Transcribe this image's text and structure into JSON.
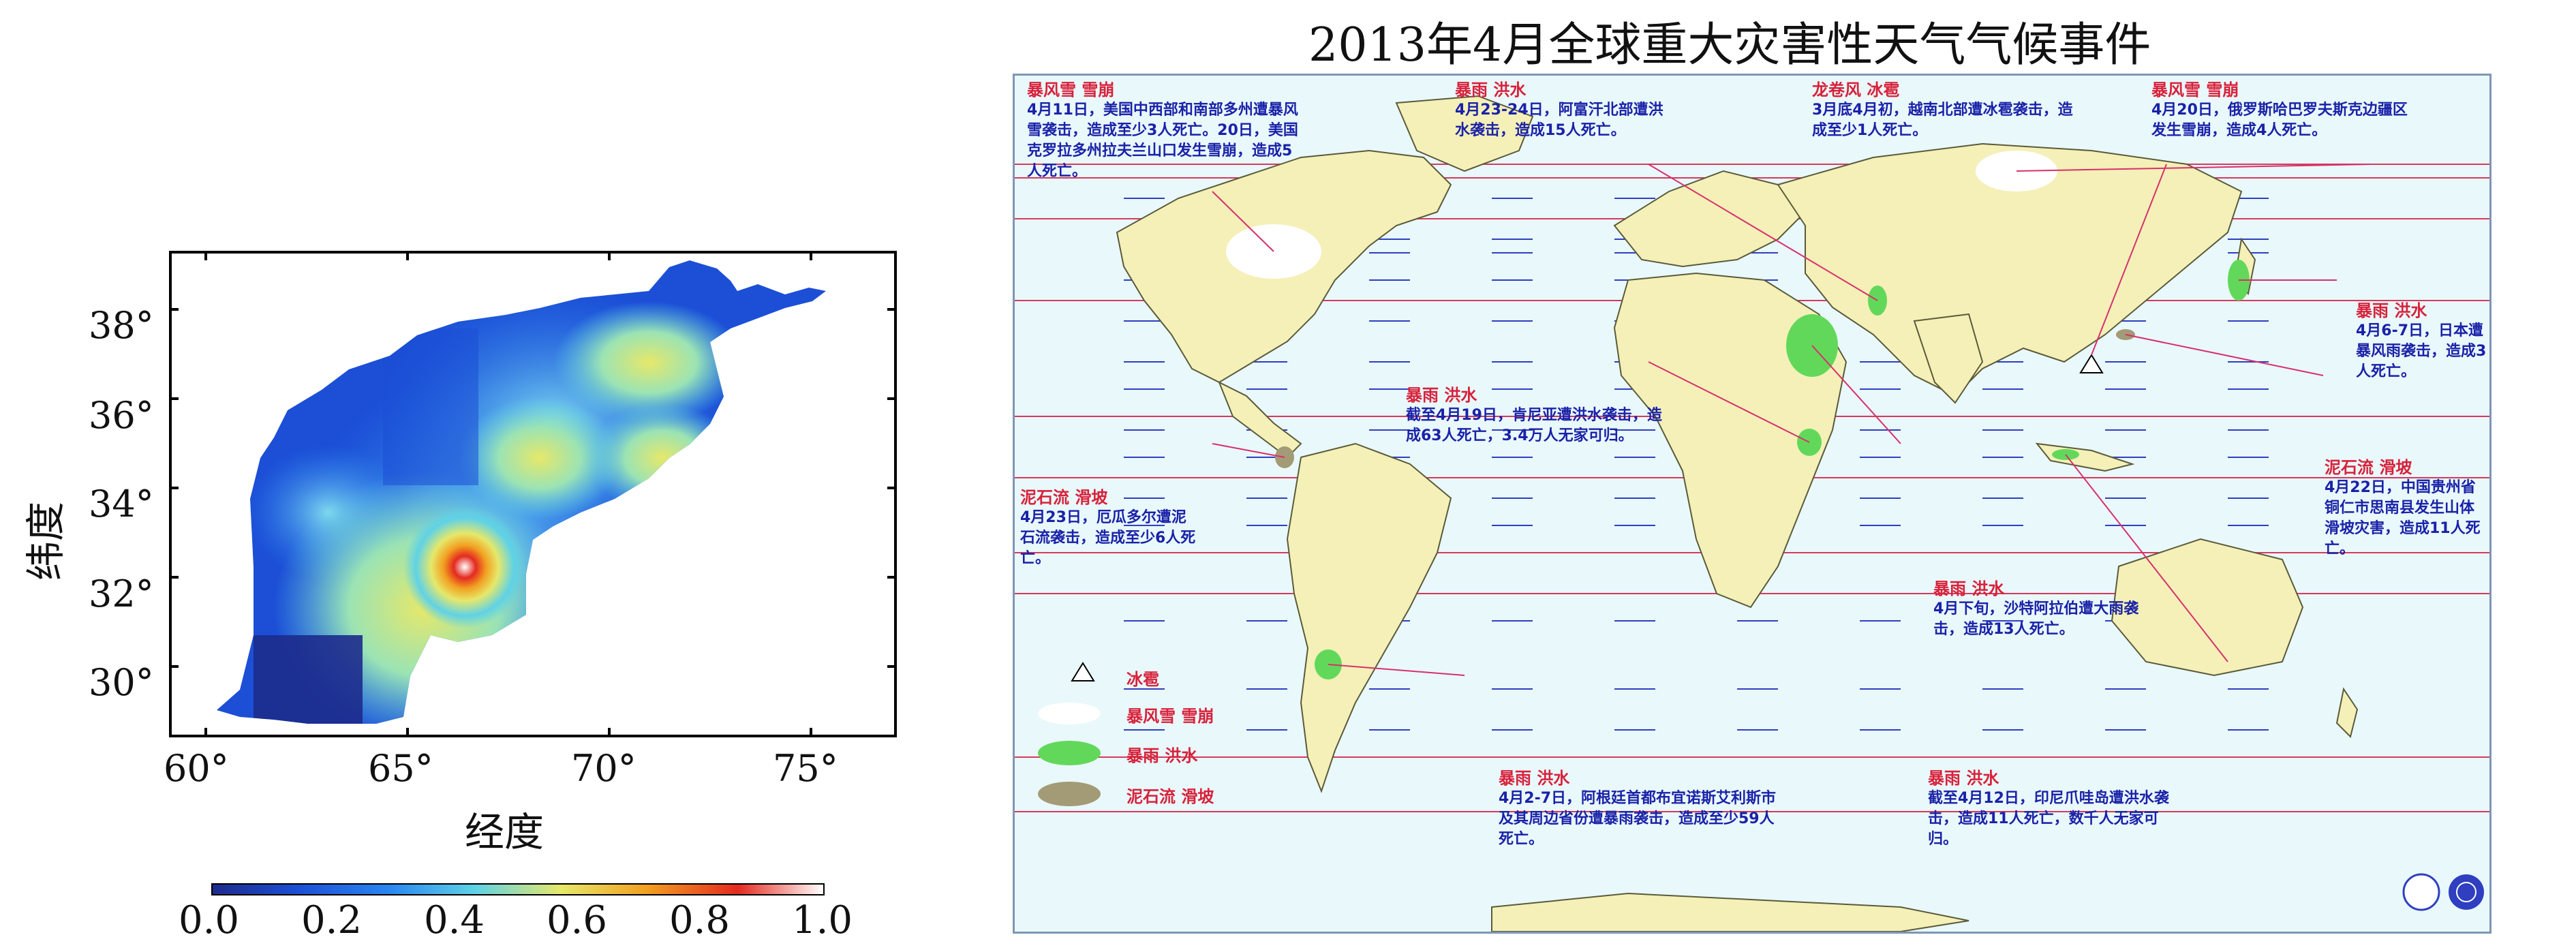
{
  "left_map": {
    "lat_labels": [
      "38°",
      "36°",
      "34°",
      "32°",
      "30°"
    ],
    "lon_labels": [
      "60°",
      "65°",
      "70°",
      "75°"
    ],
    "ylabel": "纬度",
    "xlabel": "经度",
    "colorbar": {
      "tick_labels": [
        "0.0",
        "0.2",
        "0.4",
        "0.6",
        "0.8",
        "1.0"
      ],
      "colors": [
        "#1d2b8c",
        "#1c4fd6",
        "#2a86f0",
        "#5fd2e6",
        "#e6e86a",
        "#f2a021",
        "#e42a20",
        "#ffffff"
      ]
    }
  },
  "world_map": {
    "title": "2013年4月全球重大灾害性天气气候事件",
    "events": [
      {
        "title": "暴风雪 雪崩",
        "text": "4月11日，美国中西部和南部多州遭暴风雪袭击，造成至少3人死亡。20日，美国克罗拉多州拉夫兰山口发生雪崩，造成5人死亡。"
      },
      {
        "title": "暴雨 洪水",
        "text": "4月23-24日，阿富汗北部遭洪水袭击，造成15人死亡。"
      },
      {
        "title": "龙卷风 冰雹",
        "text": "3月底4月初，越南北部遭冰雹袭击，造成至少1人死亡。"
      },
      {
        "title": "暴风雪 雪崩",
        "text": "4月20日，俄罗斯哈巴罗夫斯克边疆区发生雪崩，造成4人死亡。"
      },
      {
        "title": "暴雨 洪水",
        "text": "4月6-7日，日本遭暴风雨袭击，造成3人死亡。"
      },
      {
        "title": "暴雨 洪水",
        "text": "截至4月19日，肯尼亚遭洪水袭击，造成63人死亡，3.4万人无家可归。"
      },
      {
        "title": "泥石流 滑坡",
        "text": "4月22日，中国贵州省铜仁市思南县发生山体滑坡灾害，造成11人死亡。"
      },
      {
        "title": "泥石流 滑坡",
        "text": "4月23日，厄瓜多尔遭泥石流袭击，造成至少6人死亡。"
      },
      {
        "title": "暴雨 洪水",
        "text": "4月下旬，沙特阿拉伯遭大雨袭击，造成13人死亡。"
      },
      {
        "title": "暴雨 洪水",
        "text": "4月2-7日，阿根廷首都布宜诺斯艾利斯市及其周边省份遭暴雨袭击，造成至少59人死亡。"
      },
      {
        "title": "暴雨 洪水",
        "text": "截至4月12日，印尼爪哇岛遭洪水袭击，造成11人死亡，数千人无家可归。"
      }
    ],
    "legend": [
      {
        "label": "冰雹",
        "symbol": "triangle"
      },
      {
        "label": "暴风雪 雪崩",
        "color": "#ffffff"
      },
      {
        "label": "暴雨 洪水",
        "color": "#62d85a"
      },
      {
        "label": "泥石流 滑坡",
        "color": "#a39b76"
      }
    ],
    "colors": {
      "ocean": "#e9f8fb",
      "land": "#f4f0b8",
      "latitude_red": "#d63a5c",
      "latitude_blue": "#2f3fbf",
      "leader": "#d8306c"
    },
    "logos": [
      "wmo-icon",
      "un-icon"
    ]
  }
}
